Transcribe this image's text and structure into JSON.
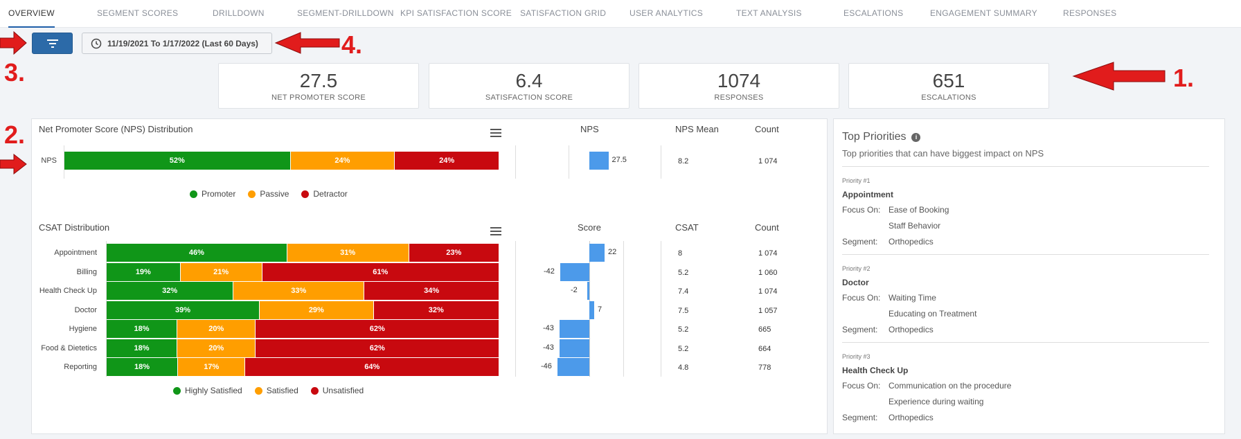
{
  "tabs": [
    {
      "label": "OVERVIEW",
      "active": true
    },
    {
      "label": "SEGMENT SCORES"
    },
    {
      "label": "DRILLDOWN"
    },
    {
      "label": "SEGMENT-DRILLDOWN"
    },
    {
      "label": "KPI SATISFACTION SCORE"
    },
    {
      "label": "SATISFACTION GRID"
    },
    {
      "label": "USER ANALYTICS"
    },
    {
      "label": "TEXT ANALYSIS"
    },
    {
      "label": "ESCALATIONS"
    },
    {
      "label": "ENGAGEMENT SUMMARY"
    },
    {
      "label": "RESPONSES"
    }
  ],
  "toolbar": {
    "filter_icon": "filter-icon",
    "date_range": "11/19/2021 To 1/17/2022 (Last 60 Days)"
  },
  "annotations": [
    "1.",
    "2.",
    "3.",
    "4."
  ],
  "kpis": [
    {
      "value": "27.5",
      "label": "NET PROMOTER SCORE"
    },
    {
      "value": "6.4",
      "label": "SATISFACTION SCORE"
    },
    {
      "value": "1074",
      "label": "RESPONSES"
    },
    {
      "value": "651",
      "label": "ESCALATIONS"
    }
  ],
  "nps": {
    "title": "Net Promoter Score (NPS) Distribution",
    "col_nps": "NPS",
    "col_mean": "NPS Mean",
    "col_count": "Count",
    "row": {
      "label": "NPS",
      "promoter": 52,
      "passive": 24,
      "detractor": 24,
      "promoter_label": "52%",
      "passive_label": "24%",
      "detractor_label": "24%",
      "nps": 27.5,
      "nps_label": "27.5",
      "mean": "8.2",
      "count": "1 074"
    },
    "legend": [
      "Promoter",
      "Passive",
      "Detractor"
    ]
  },
  "csat": {
    "title": "CSAT Distribution",
    "col_score": "Score",
    "col_csat": "CSAT",
    "col_count": "Count",
    "rows": [
      {
        "label": "Appointment",
        "hs": 46,
        "s": 31,
        "u": 23,
        "hs_label": "46%",
        "s_label": "31%",
        "u_label": "23%",
        "score": 22,
        "score_label": "22",
        "csat": "8",
        "count": "1 074"
      },
      {
        "label": "Billing",
        "hs": 19,
        "s": 21,
        "u": 61,
        "hs_label": "19%",
        "s_label": "21%",
        "u_label": "61%",
        "score": -42,
        "score_label": "-42",
        "csat": "5.2",
        "count": "1 060"
      },
      {
        "label": "Health Check Up",
        "hs": 32,
        "s": 33,
        "u": 34,
        "hs_label": "32%",
        "s_label": "33%",
        "u_label": "34%",
        "score": -2,
        "score_label": "-2",
        "csat": "7.4",
        "count": "1 074"
      },
      {
        "label": "Doctor",
        "hs": 39,
        "s": 29,
        "u": 32,
        "hs_label": "39%",
        "s_label": "29%",
        "u_label": "32%",
        "score": 7,
        "score_label": "7",
        "csat": "7.5",
        "count": "1 057"
      },
      {
        "label": "Hygiene",
        "hs": 18,
        "s": 20,
        "u": 62,
        "hs_label": "18%",
        "s_label": "20%",
        "u_label": "62%",
        "score": -43,
        "score_label": "-43",
        "csat": "5.2",
        "count": "665"
      },
      {
        "label": "Food & Dietetics",
        "hs": 18,
        "s": 20,
        "u": 62,
        "hs_label": "18%",
        "s_label": "20%",
        "u_label": "62%",
        "score": -43,
        "score_label": "-43",
        "csat": "5.2",
        "count": "664"
      },
      {
        "label": "Reporting",
        "hs": 18,
        "s": 17,
        "u": 64,
        "hs_label": "18%",
        "s_label": "17%",
        "u_label": "64%",
        "score": -46,
        "score_label": "-46",
        "csat": "4.8",
        "count": "778"
      }
    ],
    "legend": [
      "Highly Satisfied",
      "Satisfied",
      "Unsatisfied"
    ]
  },
  "priorities": {
    "title": "Top Priorities",
    "subtitle": "Top priorities that can have biggest impact on NPS",
    "focus_label": "Focus On:",
    "segment_label": "Segment:",
    "items": [
      {
        "num": "Priority #1",
        "name": "Appointment",
        "focus": [
          "Ease of Booking",
          "Staff Behavior"
        ],
        "segment": "Orthopedics"
      },
      {
        "num": "Priority #2",
        "name": "Doctor",
        "focus": [
          "Waiting Time",
          "Educating on Treatment"
        ],
        "segment": "Orthopedics"
      },
      {
        "num": "Priority #3",
        "name": "Health Check Up",
        "focus": [
          "Communication on the procedure",
          "Experience during waiting"
        ],
        "segment": "Orthopedics"
      }
    ]
  },
  "colors": {
    "green": "#109618",
    "orange": "#ff9e00",
    "red": "#c8090f",
    "blue": "#4c9aea",
    "annotation": "#e11c1c",
    "primary": "#2c6aa8"
  }
}
